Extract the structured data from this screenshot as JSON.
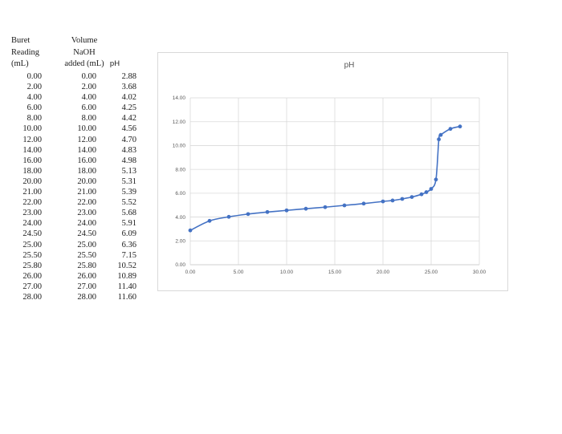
{
  "table": {
    "headers": {
      "buret": [
        "Buret",
        "Reading",
        "(mL)"
      ],
      "volume": [
        "Volume",
        "NaOH",
        "added (mL)"
      ],
      "ph": "pH"
    },
    "rows": [
      [
        "0.00",
        "0.00",
        "2.88"
      ],
      [
        "2.00",
        "2.00",
        "3.68"
      ],
      [
        "4.00",
        "4.00",
        "4.02"
      ],
      [
        "6.00",
        "6.00",
        "4.25"
      ],
      [
        "8.00",
        "8.00",
        "4.42"
      ],
      [
        "10.00",
        "10.00",
        "4.56"
      ],
      [
        "12.00",
        "12.00",
        "4.70"
      ],
      [
        "14.00",
        "14.00",
        "4.83"
      ],
      [
        "16.00",
        "16.00",
        "4.98"
      ],
      [
        "18.00",
        "18.00",
        "5.13"
      ],
      [
        "20.00",
        "20.00",
        "5.31"
      ],
      [
        "21.00",
        "21.00",
        "5.39"
      ],
      [
        "22.00",
        "22.00",
        "5.52"
      ],
      [
        "23.00",
        "23.00",
        "5.68"
      ],
      [
        "24.00",
        "24.00",
        "5.91"
      ],
      [
        "24.50",
        "24.50",
        "6.09"
      ],
      [
        "25.00",
        "25.00",
        "6.36"
      ],
      [
        "25.50",
        "25.50",
        "7.15"
      ],
      [
        "25.80",
        "25.80",
        "10.52"
      ],
      [
        "26.00",
        "26.00",
        "10.89"
      ],
      [
        "27.00",
        "27.00",
        "11.40"
      ],
      [
        "28.00",
        "28.00",
        "11.60"
      ]
    ]
  },
  "chart_data": {
    "type": "scatter",
    "title": "pH",
    "xlabel": "",
    "ylabel": "",
    "xlim": [
      0,
      30
    ],
    "ylim": [
      0,
      14
    ],
    "x_ticks": [
      "0.00",
      "5.00",
      "10.00",
      "15.00",
      "20.00",
      "25.00",
      "30.00"
    ],
    "y_ticks": [
      "0.00",
      "2.00",
      "4.00",
      "6.00",
      "8.00",
      "10.00",
      "12.00",
      "14.00"
    ],
    "grid": true,
    "smooth_line": true,
    "color": "#4472C4",
    "x": [
      0,
      2,
      4,
      6,
      8,
      10,
      12,
      14,
      16,
      18,
      20,
      21,
      22,
      23,
      24,
      24.5,
      25,
      25.5,
      25.8,
      26,
      27,
      28
    ],
    "y": [
      2.88,
      3.68,
      4.02,
      4.25,
      4.42,
      4.56,
      4.7,
      4.83,
      4.98,
      5.13,
      5.31,
      5.39,
      5.52,
      5.68,
      5.91,
      6.09,
      6.36,
      7.15,
      10.52,
      10.89,
      11.4,
      11.6
    ]
  }
}
